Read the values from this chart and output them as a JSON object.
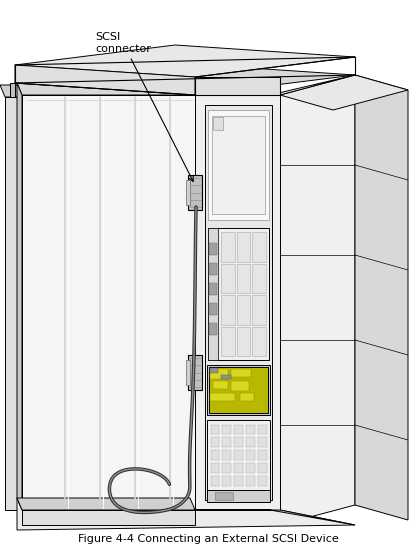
{
  "title": "Figure 4-4 Connecting an External SCSI Device",
  "label_text": "SCSI\nconnector",
  "bg_color": "#ffffff",
  "line_color": "#000000",
  "fill_white": "#ffffff",
  "fill_light": "#f0f0f0",
  "fill_lighter": "#f8f8f8",
  "fill_medium": "#d8d8d8",
  "fill_dark": "#c0c0c0",
  "fill_darker": "#a0a0a0",
  "fill_yellow": "#d8c840",
  "title_fontsize": 8,
  "label_fontsize": 8
}
